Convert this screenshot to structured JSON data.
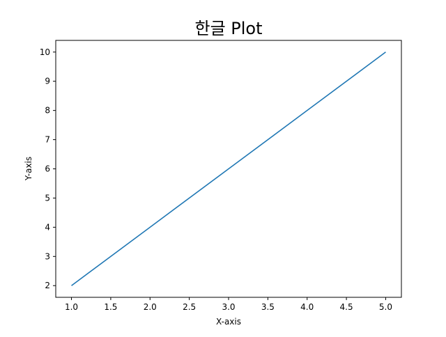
{
  "chart_data": {
    "type": "line",
    "title": "한글 Plot",
    "xlabel": "X-axis",
    "ylabel": "Y-axis",
    "xlim": [
      0.8,
      5.2
    ],
    "ylim": [
      1.6,
      10.4
    ],
    "xticks": [
      1.0,
      1.5,
      2.0,
      2.5,
      3.0,
      3.5,
      4.0,
      4.5,
      5.0
    ],
    "xtick_labels": [
      "1.0",
      "1.5",
      "2.0",
      "2.5",
      "3.0",
      "3.5",
      "4.0",
      "4.5",
      "5.0"
    ],
    "yticks": [
      2,
      3,
      4,
      5,
      6,
      7,
      8,
      9,
      10
    ],
    "ytick_labels": [
      "2",
      "3",
      "4",
      "5",
      "6",
      "7",
      "8",
      "9",
      "10"
    ],
    "grid": false,
    "series": [
      {
        "x": [
          1,
          2,
          3,
          4,
          5
        ],
        "y": [
          2,
          4,
          6,
          8,
          10
        ],
        "color": "#1f77b4"
      }
    ]
  }
}
